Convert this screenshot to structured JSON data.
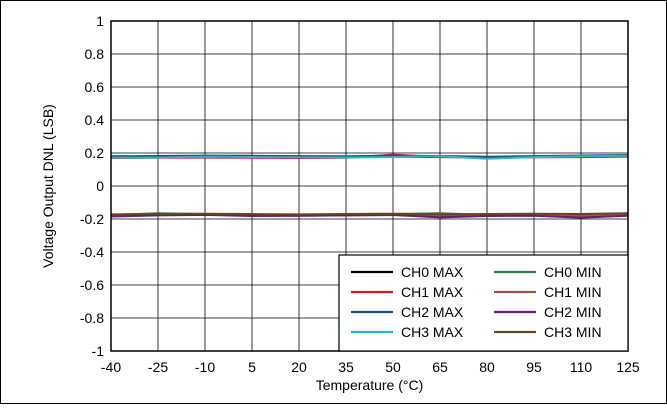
{
  "chart_data": {
    "type": "line",
    "title": "",
    "xlabel": "Temperature (°C)",
    "ylabel": "Voltage Output DNL (LSB)",
    "x": [
      -40,
      -25,
      -10,
      5,
      20,
      35,
      50,
      65,
      80,
      95,
      110,
      125
    ],
    "xlim": [
      -40,
      125
    ],
    "ylim": [
      -1,
      1
    ],
    "yticks": [
      "1",
      "0.8",
      "0.6",
      "0.4",
      "0.2",
      "0",
      "-0.2",
      "-0.4",
      "-0.6",
      "-0.8",
      "-1"
    ],
    "xticks": [
      "-40",
      "-25",
      "-10",
      "5",
      "20",
      "35",
      "50",
      "65",
      "80",
      "95",
      "110",
      "125"
    ],
    "grid": true,
    "legend_position": "bottom-right",
    "series": [
      {
        "name": "CH0 MAX",
        "color": "#000000",
        "values": [
          0.175,
          0.176,
          0.178,
          0.177,
          0.176,
          0.175,
          0.178,
          0.176,
          0.174,
          0.176,
          0.178,
          0.18
        ]
      },
      {
        "name": "CH1 MAX",
        "color": "#e3191c",
        "values": [
          0.17,
          0.171,
          0.172,
          0.171,
          0.17,
          0.171,
          0.19,
          0.175,
          0.172,
          0.174,
          0.175,
          0.178
        ]
      },
      {
        "name": "CH2 MAX",
        "color": "#1b4f72",
        "values": [
          0.18,
          0.182,
          0.184,
          0.183,
          0.181,
          0.18,
          0.183,
          0.182,
          0.177,
          0.181,
          0.185,
          0.188
        ]
      },
      {
        "name": "CH3 MAX",
        "color": "#2ab7ca",
        "values": [
          0.172,
          0.173,
          0.178,
          0.176,
          0.174,
          0.173,
          0.176,
          0.18,
          0.165,
          0.175,
          0.18,
          0.183
        ]
      },
      {
        "name": "CH0 MIN",
        "color": "#2e7d4f",
        "values": [
          -0.175,
          -0.165,
          -0.17,
          -0.172,
          -0.175,
          -0.172,
          -0.17,
          -0.165,
          -0.175,
          -0.172,
          -0.17,
          -0.168
        ]
      },
      {
        "name": "CH1 MIN",
        "color": "#a0524d",
        "values": [
          -0.18,
          -0.175,
          -0.172,
          -0.178,
          -0.18,
          -0.177,
          -0.175,
          -0.18,
          -0.178,
          -0.176,
          -0.182,
          -0.175
        ]
      },
      {
        "name": "CH2 MIN",
        "color": "#6a1b6b",
        "values": [
          -0.185,
          -0.178,
          -0.175,
          -0.182,
          -0.18,
          -0.178,
          -0.176,
          -0.19,
          -0.182,
          -0.18,
          -0.192,
          -0.18
        ]
      },
      {
        "name": "CH3 MIN",
        "color": "#5c4a1e",
        "values": [
          -0.172,
          -0.17,
          -0.168,
          -0.17,
          -0.172,
          -0.17,
          -0.168,
          -0.172,
          -0.17,
          -0.168,
          -0.17,
          -0.165
        ]
      }
    ]
  }
}
